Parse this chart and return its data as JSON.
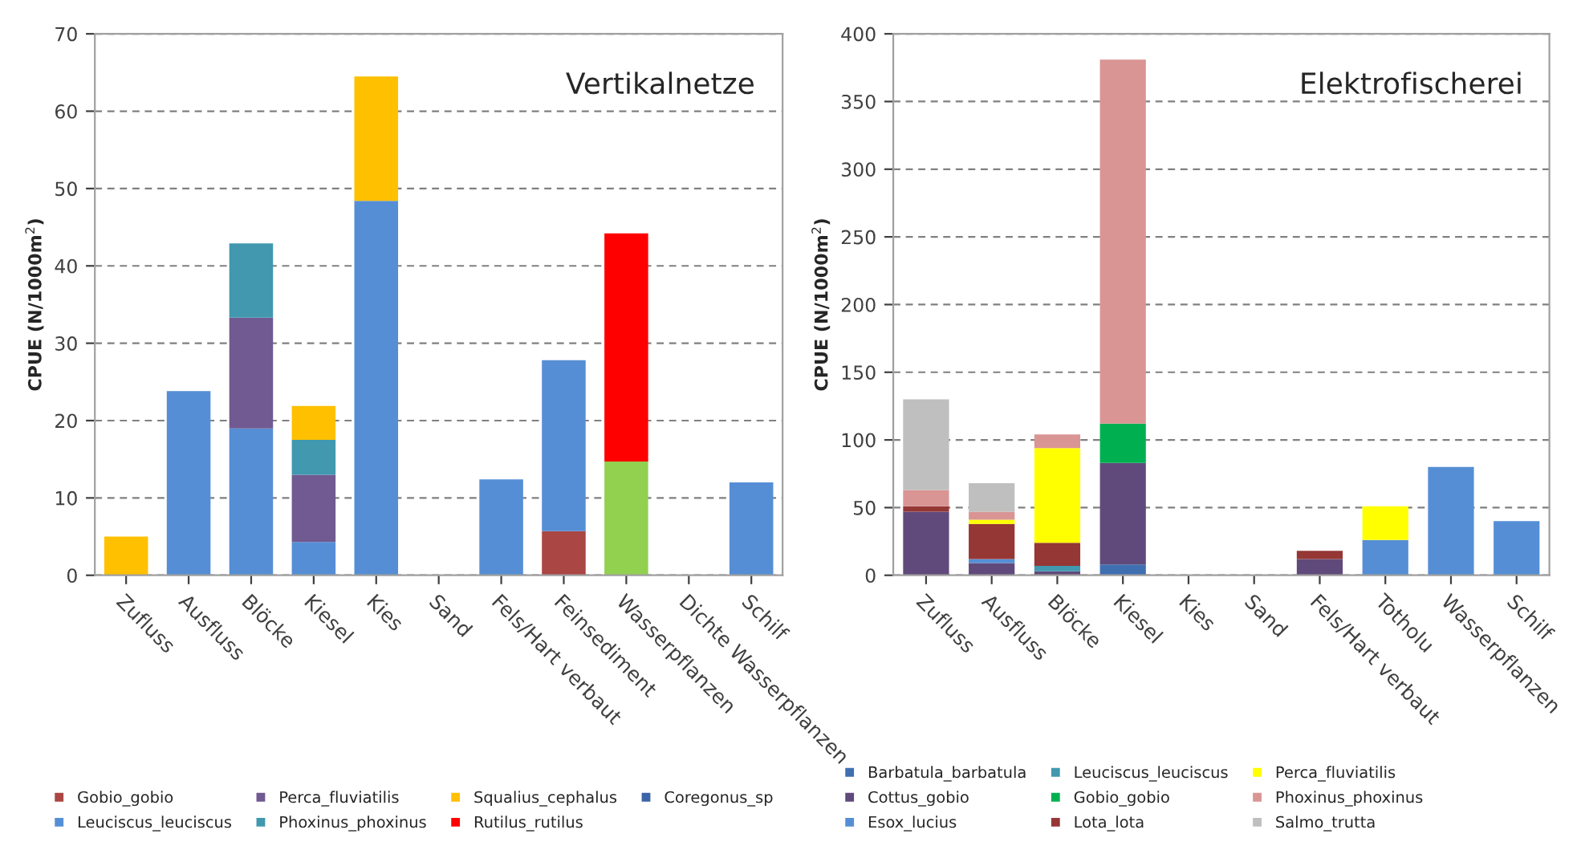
{
  "chart_data": [
    {
      "type": "bar",
      "title": "Vertikalnetze",
      "ylabel": "CPUE (N/1000m$^{2}$)",
      "stacked": true,
      "grid": "y",
      "legend": "bottom",
      "categories": [
        "Zufluss",
        "Ausfluss",
        "Blöcke",
        "Kiesel",
        "Kies",
        "Sand",
        "Fels/Hart verbaut",
        "Feinsediment",
        "Wasserpflanzen",
        "Dichte Wasserpflanzen",
        "Schilf"
      ],
      "ylim": [
        0,
        70
      ],
      "yticks": [
        0,
        10,
        20,
        30,
        40,
        50,
        60,
        70
      ],
      "series": [
        {
          "name": "Gobio_gobio",
          "color": "#aa4644",
          "values": [
            null,
            null,
            null,
            null,
            null,
            null,
            null,
            5.7,
            null,
            null,
            null
          ]
        },
        {
          "color": "#92d050",
          "values": [
            null,
            null,
            null,
            null,
            null,
            null,
            null,
            null,
            14.7,
            null,
            null
          ]
        },
        {
          "name": "Leuciscus_leuciscus",
          "color": "#558ed5",
          "values": [
            null,
            23.8,
            19,
            4.3,
            48.4,
            null,
            12.4,
            22.1,
            null,
            null,
            12
          ]
        },
        {
          "name": "Perca_fluviatilis",
          "color": "#705a91",
          "values": [
            null,
            null,
            14.3,
            8.7,
            null,
            null,
            null,
            null,
            null,
            null,
            null
          ]
        },
        {
          "name": "Phoxinus_phoxinus",
          "color": "#4198af",
          "values": [
            null,
            null,
            9.6,
            4.5,
            null,
            null,
            null,
            null,
            null,
            null,
            null
          ]
        },
        {
          "name": "Squalius_cephalus",
          "color": "#ffc000",
          "values": [
            5,
            null,
            null,
            4.4,
            16.1,
            null,
            null,
            null,
            null,
            null,
            null
          ]
        },
        {
          "name": "Rutilus_rutilus",
          "color": "#ff0000",
          "values": [
            null,
            null,
            null,
            null,
            null,
            null,
            null,
            null,
            29.5,
            null,
            null
          ]
        },
        {
          "name": "Coregonus_sp",
          "color": "#3c64a8",
          "values": [
            null,
            null,
            null,
            null,
            null,
            null,
            null,
            null,
            null,
            null,
            null
          ]
        }
      ]
    },
    {
      "type": "bar",
      "title": "Elektrofischerei",
      "ylabel": "CPUE (N/1000m$^{2}$)",
      "stacked": true,
      "grid": "y",
      "legend": "bottom",
      "categories": [
        "Zufluss",
        "Ausfluss",
        "Blöcke",
        "Kiesel",
        "Kies",
        "Sand",
        "Fels/Hart verbaut",
        "Totholu",
        "Wasserpflanzen",
        "Schilf"
      ],
      "ylim": [
        0,
        400
      ],
      "yticks": [
        0,
        50,
        100,
        150,
        200,
        250,
        300,
        350,
        400
      ],
      "series": [
        {
          "name": "Barbatula_barbatula",
          "color": "#3f6fb0",
          "values": [
            null,
            null,
            null,
            8,
            null,
            null,
            null,
            null,
            null,
            null
          ]
        },
        {
          "name": "Cottus_gobio",
          "color": "#604a7b",
          "values": [
            47,
            9,
            3,
            75,
            null,
            null,
            12,
            null,
            null,
            null
          ]
        },
        {
          "name": "Esox_lucius",
          "color": "#558ed5",
          "values": [
            null,
            3,
            null,
            null,
            null,
            null,
            null,
            26,
            80,
            40
          ]
        },
        {
          "name": "Leuciscus_leuciscus",
          "color": "#4198af",
          "values": [
            null,
            null,
            4,
            null,
            null,
            null,
            null,
            null,
            null,
            null
          ]
        },
        {
          "name": "Gobio_gobio",
          "color": "#00b050",
          "values": [
            null,
            null,
            null,
            29,
            null,
            null,
            null,
            null,
            null,
            null
          ]
        },
        {
          "name": "Lota_lota",
          "color": "#953735",
          "values": [
            4,
            26,
            17,
            null,
            null,
            null,
            6,
            null,
            null,
            null
          ]
        },
        {
          "name": "Perca_fluviatilis",
          "color": "#ffff00",
          "values": [
            null,
            3,
            70,
            null,
            null,
            null,
            null,
            25,
            null,
            null
          ]
        },
        {
          "name": "Phoxinus_phoxinus",
          "color": "#d99594",
          "values": [
            12,
            6,
            10,
            269,
            null,
            null,
            null,
            null,
            null,
            null
          ]
        },
        {
          "name": "Salmo_trutta",
          "color": "#bfbfbf",
          "values": [
            67,
            21,
            null,
            null,
            null,
            null,
            null,
            null,
            null,
            null
          ]
        }
      ]
    }
  ]
}
